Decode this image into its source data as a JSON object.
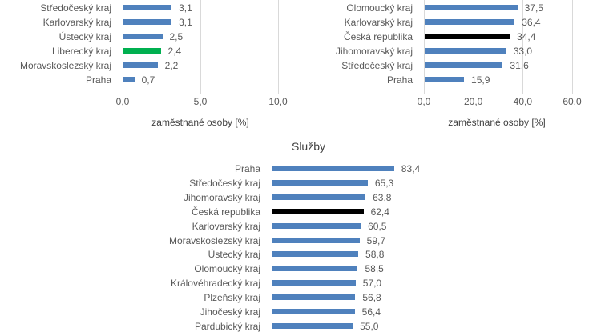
{
  "colors": {
    "bar": "#4f81bd",
    "highlight_green": "#00b050",
    "czech_republic": "#000000"
  },
  "chart_data": [
    {
      "type": "bar",
      "orientation": "horizontal",
      "title": "",
      "xlabel": "zaměstnané osoby [%]",
      "xlim": [
        0,
        10
      ],
      "xticks": [
        "0,0",
        "5,0",
        "10,0"
      ],
      "grid": true,
      "categories": [
        "Středočeský kraj",
        "Karlovarský kraj",
        "Ústecký kraj",
        "Liberecký kraj",
        "Moravskoslezský kraj",
        "Praha"
      ],
      "values": [
        3.1,
        3.1,
        2.5,
        2.4,
        2.2,
        0.7
      ],
      "labels": [
        "3,1",
        "3,1",
        "2,5",
        "2,4",
        "2,2",
        "0,7"
      ],
      "highlight": {
        "Liberecký kraj": "#00b050"
      }
    },
    {
      "type": "bar",
      "orientation": "horizontal",
      "title": "",
      "xlabel": "zaměstnané osoby [%]",
      "xlim": [
        0,
        60
      ],
      "xticks": [
        "0,0",
        "20,0",
        "40,0",
        "60,0"
      ],
      "grid": true,
      "categories": [
        "Olomoucký kraj",
        "Karlovarský kraj",
        "Česká republika",
        "Jihomoravský kraj",
        "Středočeský kraj",
        "Praha"
      ],
      "values": [
        37.5,
        36.4,
        34.4,
        33.0,
        31.6,
        15.9
      ],
      "labels": [
        "37,5",
        "36,4",
        "34,4",
        "33,0",
        "31,6",
        "15,9"
      ],
      "highlight": {
        "Česká republika": "#000000"
      }
    },
    {
      "type": "bar",
      "orientation": "horizontal",
      "title": "Služby",
      "xlim": [
        0,
        100
      ],
      "grid": true,
      "categories": [
        "Praha",
        "Středočeský kraj",
        "Jihomoravský kraj",
        "Česká republika",
        "Karlovarský kraj",
        "Moravskoslezský kraj",
        "Ústecký kraj",
        "Olomoucký kraj",
        "Královéhradecký kraj",
        "Plzeňský kraj",
        "Jihočeský kraj",
        "Pardubický kraj"
      ],
      "values": [
        83.4,
        65.3,
        63.8,
        62.4,
        60.5,
        59.7,
        58.8,
        58.5,
        57.0,
        56.8,
        56.4,
        55.0
      ],
      "labels": [
        "83,4",
        "65,3",
        "63,8",
        "62,4",
        "60,5",
        "59,7",
        "58,8",
        "58,5",
        "57,0",
        "56,8",
        "56,4",
        "55,0"
      ],
      "highlight": {
        "Česká republika": "#000000"
      }
    }
  ]
}
